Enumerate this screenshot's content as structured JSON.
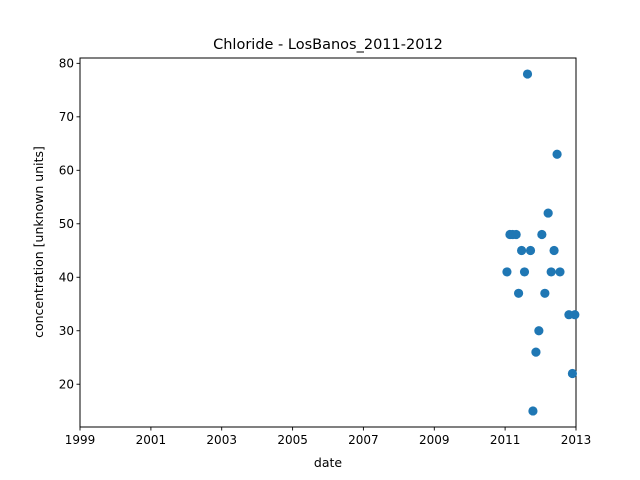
{
  "chart_data": {
    "type": "scatter",
    "title": "Chloride - LosBanos_2011-2012",
    "xlabel": "date",
    "ylabel": "concentration [unknown units]",
    "x_axis_type": "date",
    "xlim": [
      "1999-01-01",
      "2013-01-01"
    ],
    "ylim": [
      12,
      81
    ],
    "xticks": [
      "1999",
      "2001",
      "2003",
      "2005",
      "2007",
      "2009",
      "2011",
      "2013"
    ],
    "yticks": [
      20,
      30,
      40,
      50,
      60,
      70,
      80
    ],
    "grid": false,
    "legend": "none",
    "marker_color": "#1f77b4",
    "series": [
      {
        "points": [
          {
            "x": "2011-01-20",
            "y": 41
          },
          {
            "x": "2011-02-20",
            "y": 48
          },
          {
            "x": "2011-03-20",
            "y": 48
          },
          {
            "x": "2011-04-25",
            "y": 48
          },
          {
            "x": "2011-05-20",
            "y": 37
          },
          {
            "x": "2011-06-20",
            "y": 45
          },
          {
            "x": "2011-07-20",
            "y": 41
          },
          {
            "x": "2011-08-20",
            "y": 78
          },
          {
            "x": "2011-09-20",
            "y": 45
          },
          {
            "x": "2011-10-15",
            "y": 15
          },
          {
            "x": "2011-11-15",
            "y": 26
          },
          {
            "x": "2011-12-15",
            "y": 30
          },
          {
            "x": "2012-01-15",
            "y": 48
          },
          {
            "x": "2012-02-15",
            "y": 37
          },
          {
            "x": "2012-03-20",
            "y": 52
          },
          {
            "x": "2012-04-20",
            "y": 41
          },
          {
            "x": "2012-05-20",
            "y": 45
          },
          {
            "x": "2012-06-20",
            "y": 63
          },
          {
            "x": "2012-07-20",
            "y": 41
          },
          {
            "x": "2012-10-20",
            "y": 33
          },
          {
            "x": "2012-11-25",
            "y": 22
          },
          {
            "x": "2012-12-20",
            "y": 33
          }
        ]
      }
    ]
  }
}
